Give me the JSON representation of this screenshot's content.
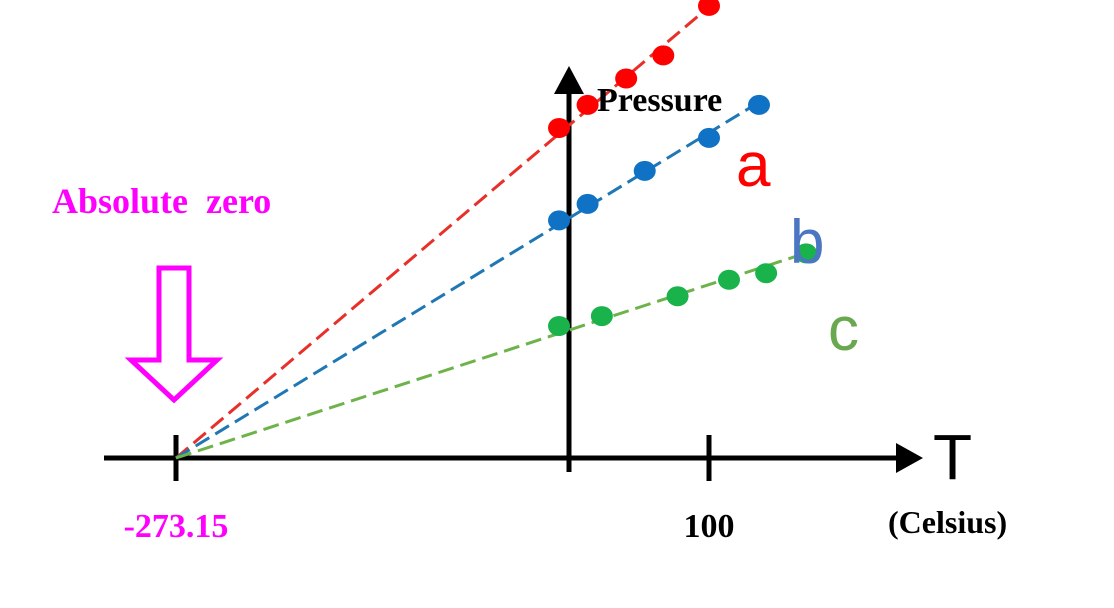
{
  "chart_data": {
    "type": "scatter",
    "title": "",
    "xlabel": "T",
    "xunit": "(Celsius)",
    "ylabel": "Pressure",
    "x_ticks": [
      {
        "value": -273.15,
        "label": "-273.15",
        "color": "#ff00ff"
      },
      {
        "value": 100,
        "label": "100",
        "color": "#000000"
      }
    ],
    "annotation": {
      "text": "Absolute  zero",
      "color": "#ff00ff",
      "points_to": -273.15
    },
    "series": [
      {
        "name": "a",
        "color": "#e8302a",
        "dot_color": "#ff0000",
        "label_color": "#ff0000",
        "x": [
          -5,
          15,
          42,
          68,
          100
        ],
        "p": [
          1.0,
          1.07,
          1.15,
          1.22,
          1.37
        ]
      },
      {
        "name": "b",
        "color": "#1f77b4",
        "dot_color": "#0f72c4",
        "label_color": "#4a76c2",
        "x": [
          -5,
          15,
          55,
          100,
          135
        ],
        "p": [
          0.72,
          0.77,
          0.87,
          0.97,
          1.07
        ]
      },
      {
        "name": "c",
        "color": "#6db34a",
        "dot_color": "#19b24b",
        "label_color": "#6aa84f",
        "x": [
          -5,
          25,
          78,
          114,
          140,
          168
        ],
        "p": [
          0.4,
          0.43,
          0.49,
          0.54,
          0.56,
          0.62
        ]
      }
    ]
  }
}
